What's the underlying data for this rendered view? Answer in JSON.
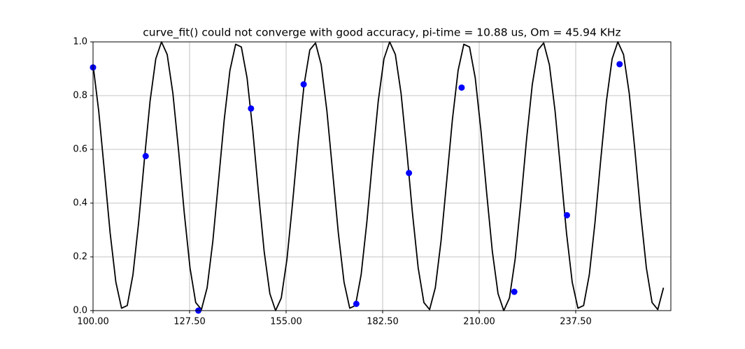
{
  "chart_data": {
    "type": "line",
    "title": "curve_fit() could not converge with good accuracy, pi-time = 10.88 us, Om = 45.94 KHz",
    "xlim": [
      100,
      264.6
    ],
    "ylim": [
      0,
      1
    ],
    "xticks": [
      {
        "value": 100,
        "label": "100.00"
      },
      {
        "value": 127.5,
        "label": "127.50"
      },
      {
        "value": 155,
        "label": "155.00"
      },
      {
        "value": 182.5,
        "label": "182.50"
      },
      {
        "value": 210,
        "label": "210.00"
      },
      {
        "value": 237.5,
        "label": "237.50"
      }
    ],
    "yticks": [
      {
        "value": 0,
        "label": "0.0"
      },
      0.2,
      0.4,
      0.6,
      0.8,
      {
        "value": 1,
        "label": "1.0"
      }
    ],
    "grid": true,
    "series": [
      {
        "type": "line",
        "color": "#000000",
        "x": [
          100,
          101.625,
          103.25,
          104.875,
          106.5,
          108.125,
          109.75,
          111.375,
          113,
          114.625,
          116.25,
          117.875,
          119.5,
          121.125,
          122.75,
          124.375,
          126,
          127.625,
          129.25,
          130.875,
          132.5,
          134.125,
          135.75,
          137.375,
          139,
          140.625,
          142.25,
          143.875,
          145.5,
          147.125,
          148.75,
          150.375,
          152,
          153.625,
          155.25,
          156.875,
          158.5,
          160.125,
          161.75,
          163.375,
          165,
          166.625,
          168.25,
          169.875,
          171.5,
          173.125,
          174.75,
          176.375,
          178,
          179.625,
          181.25,
          182.875,
          184.5,
          186.125,
          187.75,
          189.375,
          191,
          192.625,
          194.25,
          195.875,
          197.5,
          199.125,
          200.75,
          202.375,
          204,
          205.625,
          207.25,
          208.875,
          210.5,
          212.125,
          213.75,
          215.375,
          217,
          218.625,
          220.25,
          221.875,
          223.5,
          225.125,
          226.75,
          228.375,
          230,
          231.625,
          233.25,
          234.875,
          236.5,
          238.125,
          239.75,
          241.375,
          243,
          244.625,
          246.25,
          247.875,
          249.5,
          251.125,
          252.75,
          254.375,
          256,
          257.625,
          259.25,
          260.875,
          262.5
        ],
        "values": [
          0.915,
          0.742,
          0.517,
          0.289,
          0.106,
          0.009,
          0.019,
          0.134,
          0.329,
          0.561,
          0.78,
          0.937,
          1.0,
          0.953,
          0.808,
          0.595,
          0.362,
          0.159,
          0.03,
          0.004,
          0.085,
          0.258,
          0.483,
          0.711,
          0.894,
          0.991,
          0.981,
          0.866,
          0.671,
          0.439,
          0.22,
          0.063,
          0.0,
          0.047,
          0.192,
          0.405,
          0.638,
          0.841,
          0.97,
          0.996,
          0.915,
          0.742,
          0.517,
          0.289,
          0.106,
          0.009,
          0.019,
          0.134,
          0.329,
          0.561,
          0.78,
          0.937,
          1.0,
          0.953,
          0.808,
          0.595,
          0.362,
          0.159,
          0.03,
          0.004,
          0.085,
          0.258,
          0.483,
          0.711,
          0.894,
          0.991,
          0.981,
          0.866,
          0.671,
          0.439,
          0.22,
          0.063,
          0.0,
          0.047,
          0.192,
          0.405,
          0.638,
          0.841,
          0.97,
          0.996,
          0.915,
          0.742,
          0.517,
          0.289,
          0.106,
          0.009,
          0.019,
          0.134,
          0.329,
          0.561,
          0.78,
          0.937,
          1.0,
          0.953,
          0.808,
          0.595,
          0.362,
          0.159,
          0.03,
          0.004,
          0.085
        ]
      },
      {
        "type": "scatter",
        "color": "#0000ff",
        "x": [
          100,
          115,
          130,
          145,
          160,
          175,
          190,
          205,
          220,
          235,
          250
        ],
        "values": [
          0.905,
          0.575,
          0.0,
          0.752,
          0.842,
          0.025,
          0.512,
          0.83,
          0.07,
          0.355,
          0.917
        ]
      }
    ]
  }
}
